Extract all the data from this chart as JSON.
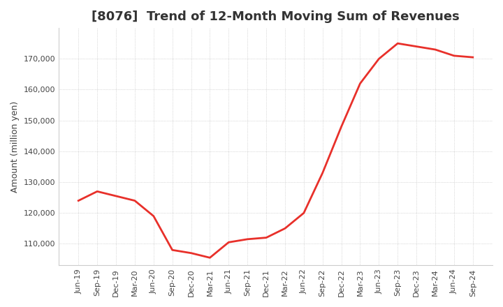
{
  "title": "[8076]  Trend of 12-Month Moving Sum of Revenues",
  "ylabel": "Amount (million yen)",
  "x_labels": [
    "Jun-19",
    "Sep-19",
    "Dec-19",
    "Mar-20",
    "Jun-20",
    "Sep-20",
    "Dec-20",
    "Mar-21",
    "Jun-21",
    "Sep-21",
    "Dec-21",
    "Mar-22",
    "Jun-22",
    "Sep-22",
    "Dec-22",
    "Mar-23",
    "Jun-23",
    "Sep-23",
    "Dec-23",
    "Mar-24",
    "Jun-24",
    "Sep-24"
  ],
  "values": [
    124000,
    127000,
    125500,
    124000,
    119000,
    108000,
    107000,
    105500,
    110500,
    111500,
    112000,
    115000,
    120000,
    133000,
    148000,
    162000,
    170000,
    175000,
    174000,
    173000,
    171000,
    170500
  ],
  "line_color": "#e8302a",
  "background_color": "#ffffff",
  "grid_color": "#aaaaaa",
  "ylim": [
    103000,
    180000
  ],
  "yticks": [
    110000,
    120000,
    130000,
    140000,
    150000,
    160000,
    170000
  ],
  "title_fontsize": 13,
  "tick_fontsize": 8,
  "ylabel_fontsize": 9,
  "line_width": 2.0
}
